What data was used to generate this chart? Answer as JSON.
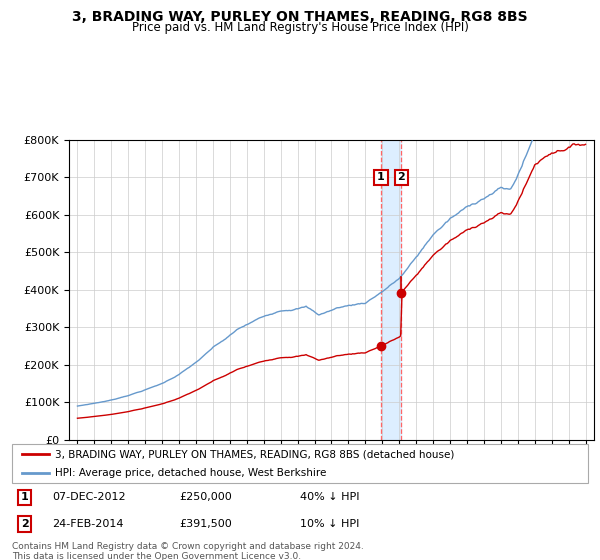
{
  "title": "3, BRADING WAY, PURLEY ON THAMES, READING, RG8 8BS",
  "subtitle": "Price paid vs. HM Land Registry's House Price Index (HPI)",
  "legend_red": "3, BRADING WAY, PURLEY ON THAMES, READING, RG8 8BS (detached house)",
  "legend_blue": "HPI: Average price, detached house, West Berkshire",
  "annotation1_date": "07-DEC-2012",
  "annotation1_price": "£250,000",
  "annotation1_hpi": "40% ↓ HPI",
  "annotation2_date": "24-FEB-2014",
  "annotation2_price": "£391,500",
  "annotation2_hpi": "10% ↓ HPI",
  "footer": "Contains HM Land Registry data © Crown copyright and database right 2024.\nThis data is licensed under the Open Government Licence v3.0.",
  "sale1_year": 2012.917,
  "sale1_price": 250000,
  "sale2_year": 2014.12,
  "sale2_price": 391500,
  "red_color": "#cc0000",
  "blue_color": "#6699cc",
  "dashed_color": "#ff6666",
  "shade_color": "#ddeeff",
  "ylim_min": 0,
  "ylim_max": 800000,
  "xlim_min": 1994.5,
  "xlim_max": 2025.5
}
